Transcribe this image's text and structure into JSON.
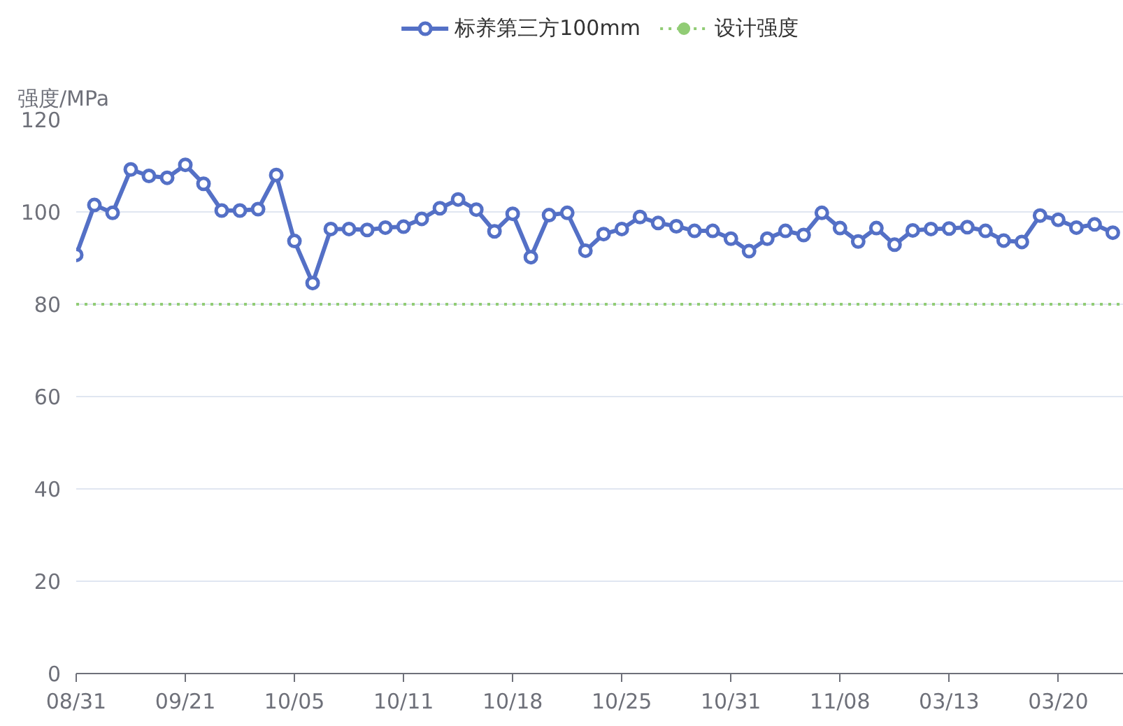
{
  "chart_data": {
    "type": "line",
    "ylabel": "强度/MPa",
    "categories": [
      "08/31",
      null,
      null,
      null,
      null,
      null,
      "09/21",
      null,
      null,
      null,
      null,
      null,
      "10/05",
      null,
      null,
      null,
      null,
      null,
      "10/11",
      null,
      null,
      null,
      null,
      null,
      "10/18",
      null,
      null,
      null,
      null,
      null,
      "10/25",
      null,
      null,
      null,
      null,
      null,
      "10/31",
      null,
      null,
      null,
      null,
      null,
      "11/08",
      null,
      null,
      null,
      null,
      null,
      "03/13",
      null,
      null,
      null,
      null,
      null,
      "03/20",
      null,
      null,
      null
    ],
    "series": [
      {
        "name": "标养第三方100mm",
        "color": "#5470c6",
        "values": [
          90.7,
          101.5,
          99.8,
          109.2,
          107.8,
          107.4,
          110.2,
          106.1,
          100.3,
          100.3,
          100.6,
          108,
          93.7,
          84.6,
          96.3,
          96.3,
          96.1,
          96.6,
          96.8,
          98.5,
          100.8,
          102.7,
          100.5,
          95.8,
          99.6,
          90.2,
          99.3,
          99.8,
          91.6,
          95.2,
          96.3,
          98.9,
          97.6,
          96.9,
          95.9,
          95.9,
          94.2,
          91.5,
          94.2,
          95.9,
          95,
          99.8,
          96.5,
          93.6,
          96.5,
          92.9,
          96,
          96.3,
          96.4,
          96.7,
          95.9,
          93.8,
          93.5,
          99.2,
          98.3,
          96.6,
          97.3,
          95.5
        ]
      }
    ],
    "ref_lines": [
      {
        "axis": "y",
        "value": 80,
        "label": "设计强度",
        "color": "#91cc75",
        "line_style": "dotted"
      }
    ],
    "ylim": [
      0,
      120
    ],
    "yticks": [
      0,
      20,
      40,
      60,
      80,
      100,
      120
    ],
    "grid": "y",
    "legend": "top",
    "marker": "circle",
    "line_style": "solid"
  }
}
